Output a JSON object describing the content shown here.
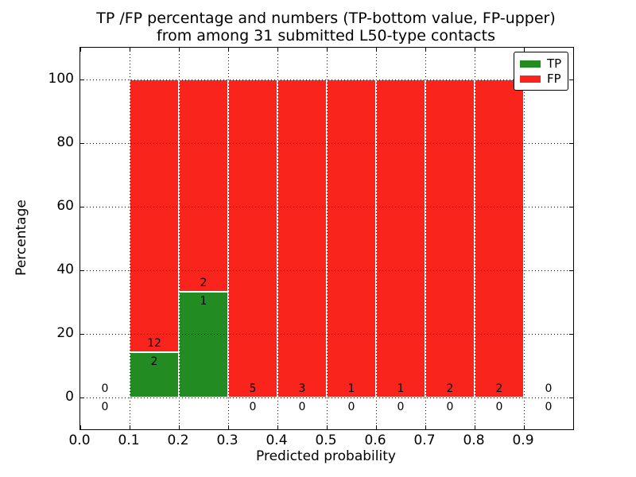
{
  "chart_data": {
    "type": "bar",
    "stacked": true,
    "title_line1": "TP /FP percentage and numbers (TP-bottom value, FP-upper)",
    "title_line2": "from among 31 submitted L50-type contacts",
    "xlabel": "Predicted probability",
    "ylabel": "Percentage",
    "xlim": [
      0.0,
      1.0
    ],
    "ylim": [
      -10,
      110
    ],
    "xtick_values": [
      0.0,
      0.1,
      0.2,
      0.3,
      0.4,
      0.5,
      0.6,
      0.7,
      0.8,
      0.9
    ],
    "xtick_labels": [
      "0.0",
      "0.1",
      "0.2",
      "0.3",
      "0.4",
      "0.5",
      "0.6",
      "0.7",
      "0.8",
      "0.9"
    ],
    "ytick_values": [
      0,
      20,
      40,
      60,
      80,
      100
    ],
    "ytick_labels": [
      "0",
      "20",
      "40",
      "60",
      "80",
      "100"
    ],
    "grid": true,
    "grid_style": "dotted",
    "colors": {
      "tp": "#228B22",
      "fp": "#F9251D"
    },
    "legend": {
      "position": "upper right",
      "items": [
        {
          "label": "TP",
          "color": "#228B22"
        },
        {
          "label": "FP",
          "color": "#F9251D"
        }
      ]
    },
    "bins": [
      {
        "x0": 0.0,
        "x1": 0.1,
        "tp_count": 0,
        "fp_count": 0,
        "tp_pct": 0.0,
        "fp_pct": 0.0
      },
      {
        "x0": 0.1,
        "x1": 0.2,
        "tp_count": 2,
        "fp_count": 12,
        "tp_pct": 14.29,
        "fp_pct": 85.71
      },
      {
        "x0": 0.2,
        "x1": 0.3,
        "tp_count": 1,
        "fp_count": 2,
        "tp_pct": 33.33,
        "fp_pct": 66.67
      },
      {
        "x0": 0.3,
        "x1": 0.4,
        "tp_count": 0,
        "fp_count": 5,
        "tp_pct": 0.0,
        "fp_pct": 100.0
      },
      {
        "x0": 0.4,
        "x1": 0.5,
        "tp_count": 0,
        "fp_count": 3,
        "tp_pct": 0.0,
        "fp_pct": 100.0
      },
      {
        "x0": 0.5,
        "x1": 0.6,
        "tp_count": 0,
        "fp_count": 1,
        "tp_pct": 0.0,
        "fp_pct": 100.0
      },
      {
        "x0": 0.6,
        "x1": 0.7,
        "tp_count": 0,
        "fp_count": 1,
        "tp_pct": 0.0,
        "fp_pct": 100.0
      },
      {
        "x0": 0.7,
        "x1": 0.8,
        "tp_count": 0,
        "fp_count": 2,
        "tp_pct": 0.0,
        "fp_pct": 100.0
      },
      {
        "x0": 0.8,
        "x1": 0.9,
        "tp_count": 0,
        "fp_count": 2,
        "tp_pct": 0.0,
        "fp_pct": 100.0
      },
      {
        "x0": 0.9,
        "x1": 1.0,
        "tp_count": 0,
        "fp_count": 0,
        "tp_pct": 0.0,
        "fp_pct": 0.0
      }
    ]
  }
}
